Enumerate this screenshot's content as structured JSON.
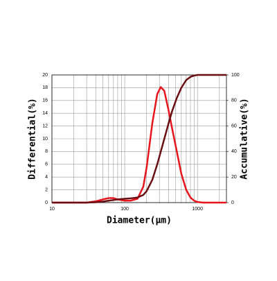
{
  "chart_data": {
    "type": "line",
    "x_label": "Diameter(μm)",
    "y_label": "Differential(%)",
    "y2_label": "Accumulative(%)",
    "x": [
      10,
      30,
      40,
      50,
      60,
      70,
      80,
      100,
      120,
      150,
      180,
      200,
      240,
      280,
      313,
      350,
      400,
      450,
      520,
      600,
      700,
      800,
      900,
      1000,
      1200,
      2500
    ],
    "series": [
      {
        "name": "Differential",
        "color": "#e8141c",
        "axis": "y",
        "values": [
          0,
          0,
          0.2,
          0.5,
          0.7,
          0.7,
          0.5,
          0.3,
          0.3,
          0.6,
          2.5,
          5.5,
          12.5,
          17,
          18.1,
          17.5,
          14.5,
          11.5,
          8,
          4.5,
          2,
          0.8,
          0.3,
          0.1,
          0,
          0
        ]
      },
      {
        "name": "Accumulative",
        "color": "#6b0e12",
        "axis": "y2",
        "values": [
          0,
          0,
          0.3,
          0.8,
          1.5,
          2,
          2.5,
          3,
          3.3,
          4,
          6,
          9,
          18,
          30,
          40,
          50,
          62,
          72,
          82,
          90,
          96,
          98.5,
          99.5,
          100,
          100,
          100
        ]
      }
    ],
    "x_log": true,
    "xlim": [
      10,
      2500
    ],
    "xticks": [
      10,
      100,
      1000
    ],
    "xminor_grid": [
      20,
      30,
      40,
      50,
      60,
      70,
      80,
      90,
      200,
      300,
      400,
      500,
      600,
      700,
      800,
      900,
      2000
    ],
    "ylim": [
      0,
      20
    ],
    "yticks": [
      0,
      2,
      4,
      6,
      8,
      10,
      12,
      14,
      16,
      18,
      20
    ],
    "y2lim": [
      0,
      100
    ],
    "y2ticks": [
      0,
      20,
      40,
      60,
      80,
      100
    ],
    "grid": true
  }
}
